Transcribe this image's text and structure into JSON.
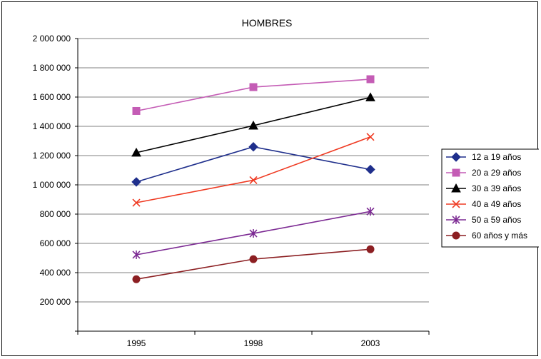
{
  "chart_data": {
    "type": "line",
    "title": "HOMBRES",
    "categories": [
      "1995",
      "1998",
      "2003"
    ],
    "ylim": [
      0,
      2000000
    ],
    "yticks": [
      "2 000 000",
      "1 800 000",
      "1 600 000",
      "1 400 000",
      "1 200 000",
      "1 000 000",
      "800 000",
      "600 000",
      "400 000",
      "200 000"
    ],
    "grid": true,
    "legend_position": "right",
    "series": [
      {
        "name": "12 a 19 años",
        "values": [
          1020000,
          1260000,
          1105000
        ],
        "color": "#1f2f8c",
        "marker": "diamond"
      },
      {
        "name": "20 a 29 años",
        "values": [
          1505000,
          1668000,
          1722000
        ],
        "color": "#c45cb5",
        "marker": "square"
      },
      {
        "name": "30 a 39 años",
        "values": [
          1220000,
          1405000,
          1598000
        ],
        "color": "#000000",
        "marker": "triangle"
      },
      {
        "name": "40 a 49 años",
        "values": [
          878000,
          1032000,
          1328000
        ],
        "color": "#ef3a22",
        "marker": "x"
      },
      {
        "name": "50 a 59 años",
        "values": [
          522000,
          668000,
          818000
        ],
        "color": "#7c2a93",
        "marker": "star"
      },
      {
        "name": "60 años y más",
        "values": [
          355000,
          492000,
          560000
        ],
        "color": "#8c1f22",
        "marker": "circle"
      }
    ]
  }
}
